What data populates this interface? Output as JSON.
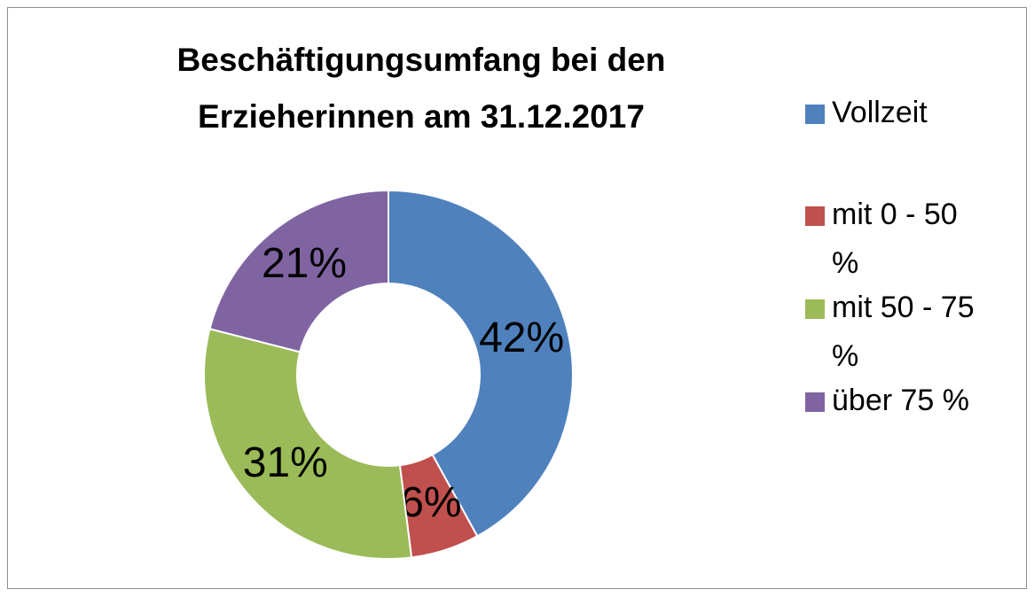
{
  "chart_data": {
    "type": "donut",
    "title": "Beschäftigungsumfang bei den Erzieherinnen am 31.12.2017",
    "categories": [
      "Vollzeit",
      "mit 0 - 50 %",
      "mit 50 - 75 %",
      "über 75 %"
    ],
    "values": [
      42,
      6,
      31,
      21
    ],
    "value_labels": [
      "42%",
      "6%",
      "31%",
      "21%"
    ],
    "colors": [
      "#4f81bd",
      "#c0504d",
      "#9bbb59",
      "#8064a2"
    ],
    "legend": "right"
  }
}
